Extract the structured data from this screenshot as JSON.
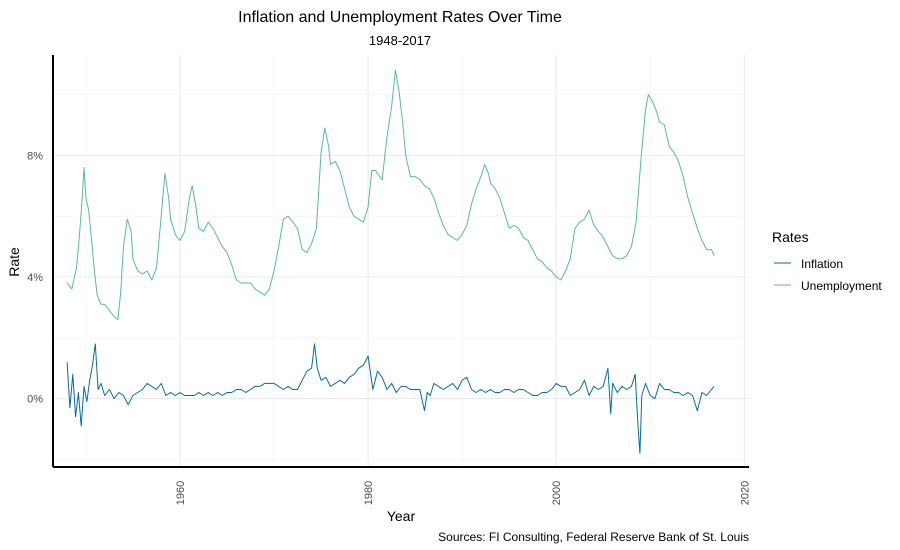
{
  "chart_data": {
    "type": "line",
    "title": "Inflation and Unemployment Rates Over Time",
    "subtitle": "1948-2017",
    "xlabel": "Year",
    "ylabel": "Rate",
    "caption": "Sources: FI Consulting, Federal Reserve Bank of St. Louis",
    "xlim": [
      1946.5,
      2020.5
    ],
    "ylim": [
      -2.25,
      11.3
    ],
    "x_ticks": [
      1960,
      1980,
      2000,
      2020
    ],
    "x_tick_labels": [
      "1960",
      "1980",
      "2000",
      "2020"
    ],
    "y_ticks": [
      0,
      4,
      8
    ],
    "y_tick_labels": [
      "0%",
      "4%",
      "8%"
    ],
    "grid": true,
    "legend": {
      "title": "Rates",
      "position": "right",
      "entries": [
        "Inflation",
        "Unemployment"
      ]
    },
    "series": [
      {
        "name": "Unemployment",
        "color": "#5bb89f",
        "points": [
          [
            1948.0,
            3.8
          ],
          [
            1948.5,
            3.6
          ],
          [
            1949.0,
            4.3
          ],
          [
            1949.3,
            5.3
          ],
          [
            1949.6,
            6.6
          ],
          [
            1949.8,
            7.6
          ],
          [
            1950.0,
            6.6
          ],
          [
            1950.3,
            6.2
          ],
          [
            1950.6,
            5.2
          ],
          [
            1950.9,
            4.2
          ],
          [
            1951.2,
            3.4
          ],
          [
            1951.6,
            3.1
          ],
          [
            1952.0,
            3.1
          ],
          [
            1952.5,
            2.9
          ],
          [
            1953.0,
            2.7
          ],
          [
            1953.4,
            2.6
          ],
          [
            1953.7,
            3.5
          ],
          [
            1954.0,
            5.0
          ],
          [
            1954.4,
            5.9
          ],
          [
            1954.8,
            5.5
          ],
          [
            1955.0,
            4.6
          ],
          [
            1955.5,
            4.2
          ],
          [
            1956.0,
            4.1
          ],
          [
            1956.5,
            4.2
          ],
          [
            1957.0,
            3.9
          ],
          [
            1957.5,
            4.3
          ],
          [
            1958.0,
            6.0
          ],
          [
            1958.4,
            7.4
          ],
          [
            1958.8,
            6.6
          ],
          [
            1959.0,
            5.9
          ],
          [
            1959.5,
            5.4
          ],
          [
            1960.0,
            5.2
          ],
          [
            1960.5,
            5.5
          ],
          [
            1961.0,
            6.6
          ],
          [
            1961.3,
            7.0
          ],
          [
            1961.7,
            6.3
          ],
          [
            1962.0,
            5.6
          ],
          [
            1962.5,
            5.5
          ],
          [
            1963.0,
            5.8
          ],
          [
            1963.5,
            5.6
          ],
          [
            1964.0,
            5.3
          ],
          [
            1964.5,
            5.0
          ],
          [
            1965.0,
            4.8
          ],
          [
            1965.5,
            4.4
          ],
          [
            1966.0,
            3.9
          ],
          [
            1966.5,
            3.8
          ],
          [
            1967.0,
            3.8
          ],
          [
            1967.5,
            3.8
          ],
          [
            1968.0,
            3.6
          ],
          [
            1968.5,
            3.5
          ],
          [
            1969.0,
            3.4
          ],
          [
            1969.5,
            3.6
          ],
          [
            1970.0,
            4.2
          ],
          [
            1970.5,
            5.0
          ],
          [
            1971.0,
            5.9
          ],
          [
            1971.5,
            6.0
          ],
          [
            1972.0,
            5.8
          ],
          [
            1972.5,
            5.6
          ],
          [
            1973.0,
            4.9
          ],
          [
            1973.5,
            4.8
          ],
          [
            1974.0,
            5.1
          ],
          [
            1974.5,
            5.6
          ],
          [
            1975.0,
            8.1
          ],
          [
            1975.4,
            8.9
          ],
          [
            1975.8,
            8.3
          ],
          [
            1976.0,
            7.7
          ],
          [
            1976.5,
            7.8
          ],
          [
            1977.0,
            7.5
          ],
          [
            1977.5,
            6.9
          ],
          [
            1978.0,
            6.3
          ],
          [
            1978.5,
            6.0
          ],
          [
            1979.0,
            5.9
          ],
          [
            1979.5,
            5.8
          ],
          [
            1980.0,
            6.3
          ],
          [
            1980.4,
            7.5
          ],
          [
            1980.8,
            7.5
          ],
          [
            1981.0,
            7.4
          ],
          [
            1981.5,
            7.2
          ],
          [
            1982.0,
            8.6
          ],
          [
            1982.5,
            9.6
          ],
          [
            1982.9,
            10.8
          ],
          [
            1983.3,
            10.1
          ],
          [
            1983.7,
            9.0
          ],
          [
            1984.0,
            8.0
          ],
          [
            1984.5,
            7.3
          ],
          [
            1985.0,
            7.3
          ],
          [
            1985.5,
            7.2
          ],
          [
            1986.0,
            7.0
          ],
          [
            1986.5,
            6.9
          ],
          [
            1987.0,
            6.6
          ],
          [
            1987.5,
            6.1
          ],
          [
            1988.0,
            5.7
          ],
          [
            1988.5,
            5.4
          ],
          [
            1989.0,
            5.3
          ],
          [
            1989.5,
            5.2
          ],
          [
            1990.0,
            5.4
          ],
          [
            1990.5,
            5.7
          ],
          [
            1991.0,
            6.4
          ],
          [
            1991.5,
            6.9
          ],
          [
            1992.0,
            7.3
          ],
          [
            1992.4,
            7.7
          ],
          [
            1992.8,
            7.4
          ],
          [
            1993.0,
            7.1
          ],
          [
            1993.5,
            6.9
          ],
          [
            1994.0,
            6.6
          ],
          [
            1994.5,
            6.1
          ],
          [
            1995.0,
            5.6
          ],
          [
            1995.5,
            5.7
          ],
          [
            1996.0,
            5.6
          ],
          [
            1996.5,
            5.3
          ],
          [
            1997.0,
            5.2
          ],
          [
            1997.5,
            4.9
          ],
          [
            1998.0,
            4.6
          ],
          [
            1998.5,
            4.5
          ],
          [
            1999.0,
            4.3
          ],
          [
            1999.5,
            4.2
          ],
          [
            2000.0,
            4.0
          ],
          [
            2000.5,
            3.9
          ],
          [
            2001.0,
            4.2
          ],
          [
            2001.5,
            4.6
          ],
          [
            2002.0,
            5.6
          ],
          [
            2002.5,
            5.8
          ],
          [
            2003.0,
            5.9
          ],
          [
            2003.5,
            6.2
          ],
          [
            2004.0,
            5.7
          ],
          [
            2004.5,
            5.5
          ],
          [
            2005.0,
            5.3
          ],
          [
            2005.5,
            5.0
          ],
          [
            2006.0,
            4.7
          ],
          [
            2006.5,
            4.6
          ],
          [
            2007.0,
            4.6
          ],
          [
            2007.5,
            4.7
          ],
          [
            2008.0,
            5.0
          ],
          [
            2008.5,
            5.8
          ],
          [
            2009.0,
            7.8
          ],
          [
            2009.5,
            9.5
          ],
          [
            2009.8,
            10.0
          ],
          [
            2010.2,
            9.8
          ],
          [
            2010.6,
            9.5
          ],
          [
            2011.0,
            9.1
          ],
          [
            2011.5,
            9.0
          ],
          [
            2012.0,
            8.3
          ],
          [
            2012.5,
            8.1
          ],
          [
            2013.0,
            7.8
          ],
          [
            2013.5,
            7.3
          ],
          [
            2014.0,
            6.6
          ],
          [
            2014.5,
            6.1
          ],
          [
            2015.0,
            5.6
          ],
          [
            2015.5,
            5.2
          ],
          [
            2016.0,
            4.9
          ],
          [
            2016.5,
            4.9
          ],
          [
            2016.8,
            4.7
          ]
        ]
      },
      {
        "name": "Inflation",
        "color": "#0a6d96",
        "points": [
          [
            1948.0,
            1.2
          ],
          [
            1948.3,
            -0.3
          ],
          [
            1948.6,
            0.8
          ],
          [
            1948.9,
            -0.6
          ],
          [
            1949.2,
            0.2
          ],
          [
            1949.5,
            -0.9
          ],
          [
            1949.8,
            0.4
          ],
          [
            1950.1,
            -0.1
          ],
          [
            1950.4,
            0.6
          ],
          [
            1950.7,
            1.1
          ],
          [
            1951.0,
            1.8
          ],
          [
            1951.3,
            0.3
          ],
          [
            1951.6,
            0.5
          ],
          [
            1952.0,
            0.1
          ],
          [
            1952.5,
            0.3
          ],
          [
            1953.0,
            0.0
          ],
          [
            1953.5,
            0.2
          ],
          [
            1954.0,
            0.1
          ],
          [
            1954.5,
            -0.2
          ],
          [
            1955.0,
            0.1
          ],
          [
            1955.5,
            0.2
          ],
          [
            1956.0,
            0.3
          ],
          [
            1956.5,
            0.5
          ],
          [
            1957.0,
            0.4
          ],
          [
            1957.5,
            0.3
          ],
          [
            1958.0,
            0.5
          ],
          [
            1958.5,
            0.1
          ],
          [
            1959.0,
            0.2
          ],
          [
            1959.5,
            0.1
          ],
          [
            1960.0,
            0.2
          ],
          [
            1960.5,
            0.1
          ],
          [
            1961.0,
            0.1
          ],
          [
            1961.5,
            0.1
          ],
          [
            1962.0,
            0.2
          ],
          [
            1962.5,
            0.1
          ],
          [
            1963.0,
            0.2
          ],
          [
            1963.5,
            0.1
          ],
          [
            1964.0,
            0.2
          ],
          [
            1964.5,
            0.1
          ],
          [
            1965.0,
            0.2
          ],
          [
            1965.5,
            0.2
          ],
          [
            1966.0,
            0.3
          ],
          [
            1966.5,
            0.3
          ],
          [
            1967.0,
            0.2
          ],
          [
            1967.5,
            0.3
          ],
          [
            1968.0,
            0.4
          ],
          [
            1968.5,
            0.4
          ],
          [
            1969.0,
            0.5
          ],
          [
            1969.5,
            0.5
          ],
          [
            1970.0,
            0.5
          ],
          [
            1970.5,
            0.4
          ],
          [
            1971.0,
            0.3
          ],
          [
            1971.5,
            0.4
          ],
          [
            1972.0,
            0.3
          ],
          [
            1972.5,
            0.3
          ],
          [
            1973.0,
            0.6
          ],
          [
            1973.5,
            0.9
          ],
          [
            1974.0,
            1.0
          ],
          [
            1974.3,
            1.8
          ],
          [
            1974.6,
            1.0
          ],
          [
            1975.0,
            0.6
          ],
          [
            1975.5,
            0.7
          ],
          [
            1976.0,
            0.4
          ],
          [
            1976.5,
            0.5
          ],
          [
            1977.0,
            0.6
          ],
          [
            1977.5,
            0.5
          ],
          [
            1978.0,
            0.7
          ],
          [
            1978.5,
            0.8
          ],
          [
            1979.0,
            1.0
          ],
          [
            1979.5,
            1.1
          ],
          [
            1980.0,
            1.4
          ],
          [
            1980.5,
            0.3
          ],
          [
            1981.0,
            0.9
          ],
          [
            1981.5,
            0.7
          ],
          [
            1982.0,
            0.3
          ],
          [
            1982.5,
            0.5
          ],
          [
            1983.0,
            0.2
          ],
          [
            1983.5,
            0.4
          ],
          [
            1984.0,
            0.4
          ],
          [
            1984.5,
            0.3
          ],
          [
            1985.0,
            0.3
          ],
          [
            1985.5,
            0.3
          ],
          [
            1986.0,
            -0.4
          ],
          [
            1986.3,
            0.2
          ],
          [
            1986.6,
            0.1
          ],
          [
            1987.0,
            0.5
          ],
          [
            1987.5,
            0.4
          ],
          [
            1988.0,
            0.3
          ],
          [
            1988.5,
            0.4
          ],
          [
            1989.0,
            0.5
          ],
          [
            1989.5,
            0.3
          ],
          [
            1990.0,
            0.6
          ],
          [
            1990.5,
            0.7
          ],
          [
            1991.0,
            0.3
          ],
          [
            1991.5,
            0.2
          ],
          [
            1992.0,
            0.3
          ],
          [
            1992.5,
            0.2
          ],
          [
            1993.0,
            0.3
          ],
          [
            1993.5,
            0.2
          ],
          [
            1994.0,
            0.2
          ],
          [
            1994.5,
            0.3
          ],
          [
            1995.0,
            0.3
          ],
          [
            1995.5,
            0.2
          ],
          [
            1996.0,
            0.3
          ],
          [
            1996.5,
            0.3
          ],
          [
            1997.0,
            0.2
          ],
          [
            1997.5,
            0.1
          ],
          [
            1998.0,
            0.1
          ],
          [
            1998.5,
            0.2
          ],
          [
            1999.0,
            0.2
          ],
          [
            1999.5,
            0.3
          ],
          [
            2000.0,
            0.5
          ],
          [
            2000.5,
            0.4
          ],
          [
            2001.0,
            0.4
          ],
          [
            2001.5,
            0.1
          ],
          [
            2002.0,
            0.2
          ],
          [
            2002.5,
            0.3
          ],
          [
            2003.0,
            0.6
          ],
          [
            2003.5,
            0.1
          ],
          [
            2004.0,
            0.4
          ],
          [
            2004.5,
            0.3
          ],
          [
            2005.0,
            0.4
          ],
          [
            2005.5,
            1.0
          ],
          [
            2005.8,
            -0.5
          ],
          [
            2006.0,
            0.5
          ],
          [
            2006.5,
            0.2
          ],
          [
            2007.0,
            0.4
          ],
          [
            2007.5,
            0.3
          ],
          [
            2008.0,
            0.4
          ],
          [
            2008.4,
            0.8
          ],
          [
            2008.7,
            -0.9
          ],
          [
            2008.9,
            -1.8
          ],
          [
            2009.1,
            0.1
          ],
          [
            2009.5,
            0.5
          ],
          [
            2010.0,
            0.1
          ],
          [
            2010.5,
            0.0
          ],
          [
            2011.0,
            0.5
          ],
          [
            2011.5,
            0.3
          ],
          [
            2012.0,
            0.3
          ],
          [
            2012.5,
            0.2
          ],
          [
            2013.0,
            0.2
          ],
          [
            2013.5,
            0.1
          ],
          [
            2014.0,
            0.2
          ],
          [
            2014.5,
            0.1
          ],
          [
            2015.0,
            -0.4
          ],
          [
            2015.5,
            0.2
          ],
          [
            2016.0,
            0.1
          ],
          [
            2016.5,
            0.3
          ],
          [
            2016.8,
            0.4
          ]
        ]
      }
    ]
  }
}
